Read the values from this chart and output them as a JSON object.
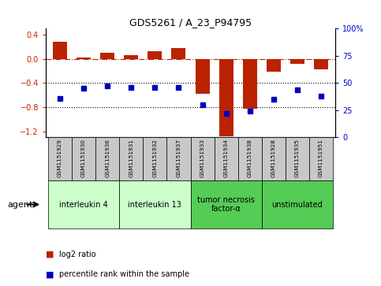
{
  "title": "GDS5261 / A_23_P94795",
  "samples": [
    "GSM1151929",
    "GSM1151930",
    "GSM1151936",
    "GSM1151931",
    "GSM1151932",
    "GSM1151937",
    "GSM1151933",
    "GSM1151934",
    "GSM1151938",
    "GSM1151928",
    "GSM1151935",
    "GSM1151951"
  ],
  "log2_ratio": [
    0.28,
    0.02,
    0.1,
    0.06,
    0.12,
    0.18,
    -0.58,
    -1.28,
    -0.83,
    -0.22,
    -0.08,
    -0.17
  ],
  "percentile_rank": [
    36,
    45,
    47,
    46,
    46,
    46,
    30,
    22,
    24,
    35,
    44,
    38
  ],
  "ylim_left": [
    -1.3,
    0.5
  ],
  "ylim_right": [
    0,
    100
  ],
  "yticks_left": [
    -1.2,
    -0.8,
    -0.4,
    0.0,
    0.4
  ],
  "yticks_right": [
    0,
    25,
    50,
    75,
    100
  ],
  "groups": [
    {
      "label": "interleukin 4",
      "start": 0,
      "end": 2,
      "color": "#ccffcc"
    },
    {
      "label": "interleukin 13",
      "start": 3,
      "end": 5,
      "color": "#ccffcc"
    },
    {
      "label": "tumor necrosis\nfactor-α",
      "start": 6,
      "end": 8,
      "color": "#55cc55"
    },
    {
      "label": "unstimulated",
      "start": 9,
      "end": 11,
      "color": "#55cc55"
    }
  ],
  "bar_color": "#bb2200",
  "dot_color": "#0000bb",
  "hline_color": "#bb2200",
  "dotline_color": "#000000",
  "sample_box_color": "#c8c8c8",
  "agent_label": "agent",
  "legend_bar_label": "log2 ratio",
  "legend_dot_label": "percentile rank within the sample",
  "left_tick_color": "#cc2200",
  "right_tick_color": "#0000cc"
}
